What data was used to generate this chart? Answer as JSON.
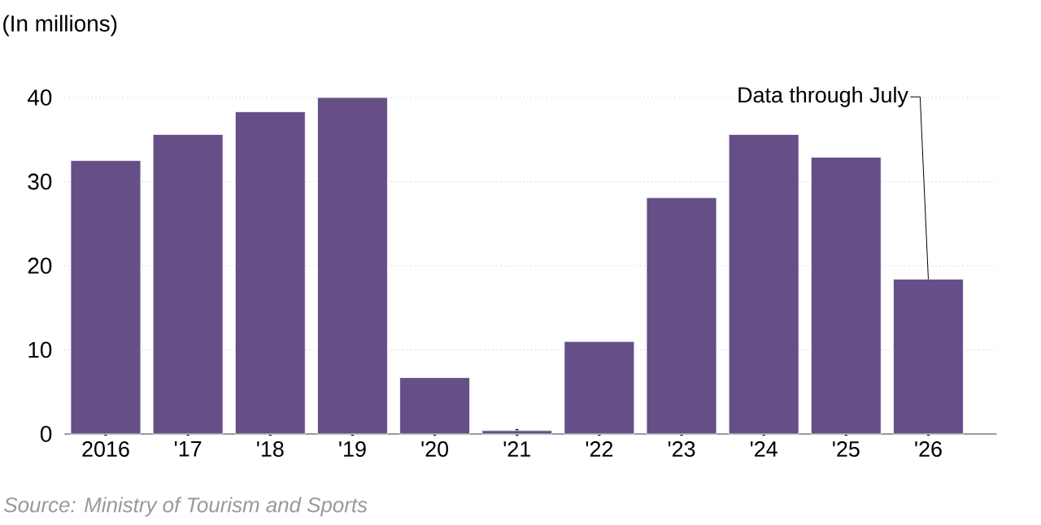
{
  "chart_data": {
    "type": "bar",
    "title": "(In millions)",
    "categories": [
      "2016",
      "'17",
      "'18",
      "'19",
      "'20",
      "'21",
      "'22",
      "'23",
      "'24",
      "'25",
      "'26"
    ],
    "values": [
      32.5,
      35.6,
      38.3,
      40,
      6.7,
      0.4,
      11.0,
      28.1,
      35.6,
      32.9,
      18.4
    ],
    "color": "#654f86",
    "ylim": [
      0,
      40
    ],
    "yticks": [
      0,
      10,
      20,
      30,
      40
    ],
    "grid": "y",
    "annotations": [
      {
        "text": "Data through July",
        "x": "'26",
        "y": 18.4
      },
      "Source: Ministry of Tourism and Sports"
    ]
  }
}
